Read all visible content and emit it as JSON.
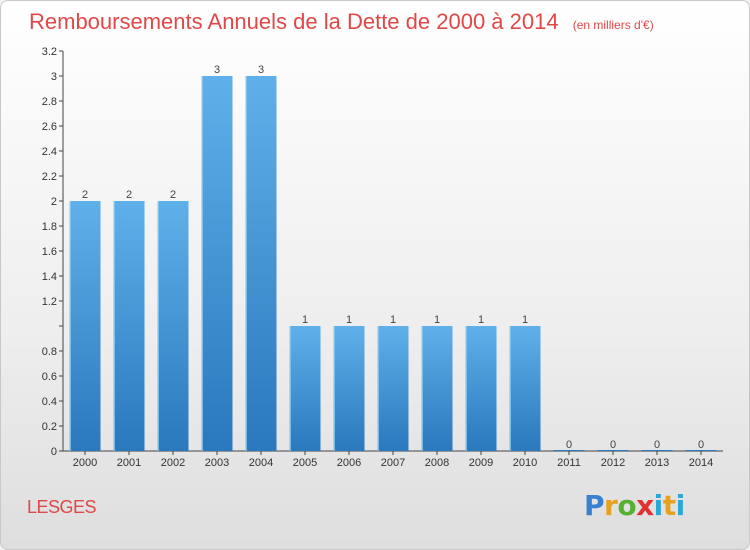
{
  "header": {
    "title": "Remboursements Annuels de la Dette de 2000 à 2014",
    "subtitle": "(en milliers d'€)"
  },
  "footer": {
    "commune": "LESGES",
    "logo_text": "Proxiti"
  },
  "chart_data": {
    "type": "bar",
    "title": "Remboursements Annuels de la Dette de 2000 à 2014",
    "subtitle": "(en milliers d'€)",
    "categories": [
      "2000",
      "2001",
      "2002",
      "2003",
      "2004",
      "2005",
      "2006",
      "2007",
      "2008",
      "2009",
      "2010",
      "2011",
      "2012",
      "2013",
      "2014"
    ],
    "values": [
      2,
      2,
      2,
      3,
      3,
      1,
      1,
      1,
      1,
      1,
      1,
      0,
      0,
      0,
      0
    ],
    "data_labels": [
      "2",
      "2",
      "2",
      "3",
      "3",
      "1",
      "1",
      "1",
      "1",
      "1",
      "1",
      "0",
      "0",
      "0",
      "0"
    ],
    "ylim": [
      0,
      3.2
    ],
    "yticks": [
      0,
      0.2,
      0.4,
      0.6,
      0.8,
      1,
      1.2,
      1.4,
      1.6,
      1.8,
      2,
      2.2,
      2.4,
      2.6,
      2.8,
      3,
      3.2
    ],
    "ytick_labels": [
      "0",
      "0.2",
      "0.4",
      "0.6",
      "0.8",
      "",
      "1.2",
      "1.4",
      "1.6",
      "1.8",
      "2",
      "2.2",
      "2.4",
      "2.6",
      "2.8",
      "3",
      "3.2"
    ],
    "grid": false,
    "xlabel": "",
    "ylabel": "",
    "bar_color_top": "#5fb0ea",
    "bar_color_bottom": "#2a78bd",
    "title_color": "#e04848"
  }
}
